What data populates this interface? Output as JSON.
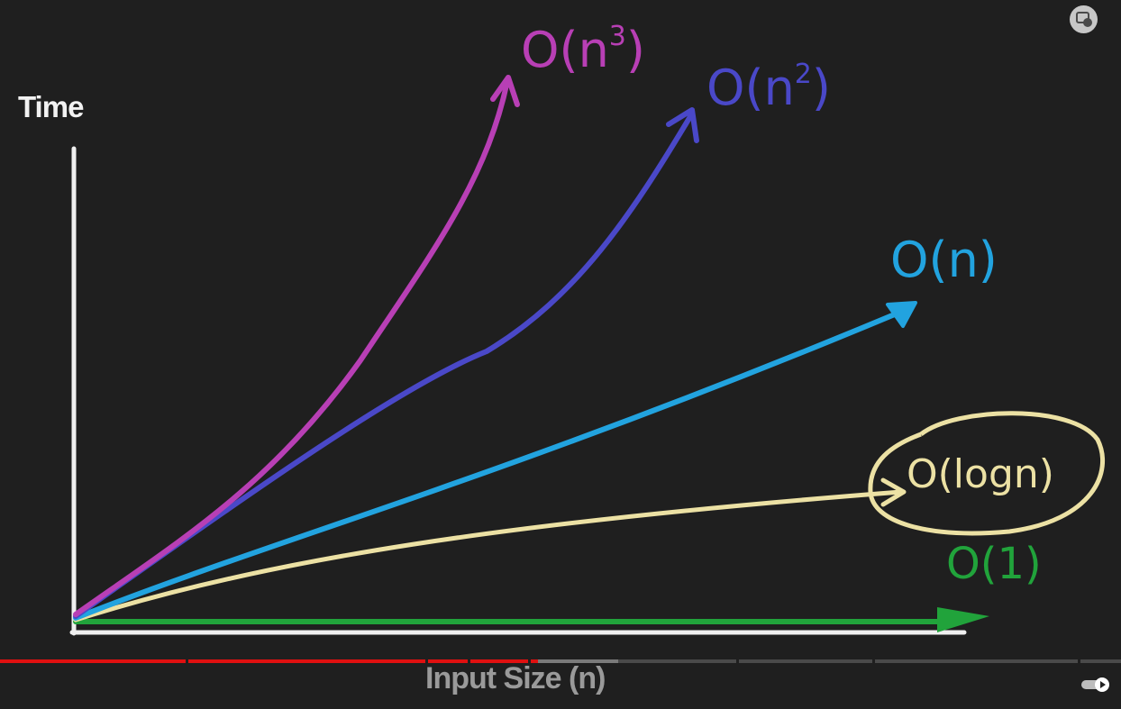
{
  "graph": {
    "y_axis_label": "Time",
    "x_axis_label": "Input Size (n)",
    "curves": [
      {
        "id": "cubic",
        "notation": "O(n",
        "exponent": "3",
        "close": ")",
        "color": "#b83fb5"
      },
      {
        "id": "quadratic",
        "notation": "O(n",
        "exponent": "2",
        "close": ")",
        "color": "#4a48c8"
      },
      {
        "id": "linear",
        "notation": "O(n)",
        "color": "#22a3df"
      },
      {
        "id": "logarithmic",
        "notation": "O(logn)",
        "color": "#ece1a4"
      },
      {
        "id": "constant",
        "notation": "O(1)",
        "color": "#21a33b"
      }
    ]
  },
  "player": {
    "progress_fraction": 0.48,
    "played_color": "#e01010",
    "buffered_color": "#7a7a7a",
    "unplayed_color": "#4a4a4a",
    "autoplay_on": true
  }
}
